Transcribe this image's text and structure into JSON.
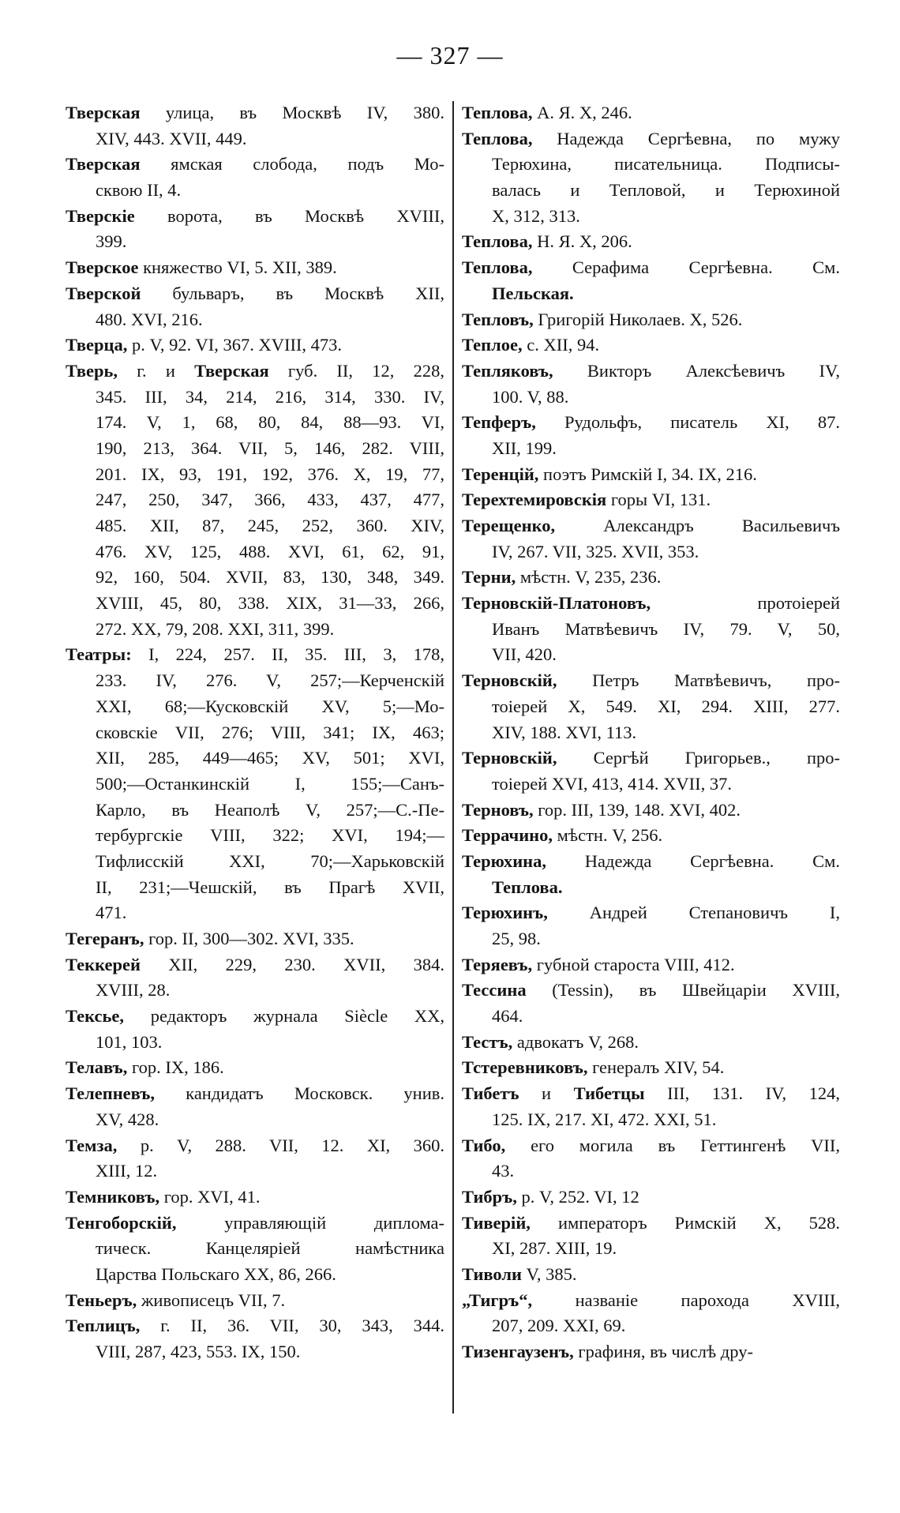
{
  "page_number": "— 327 —",
  "left": {
    "entries": [
      {
        "head": "Тверская",
        "lines": [
          " улица, въ Москвѣ IV, 380.",
          "XIV, 443. XVII, 449."
        ]
      },
      {
        "head": "Тверская",
        "lines": [
          " ямская слобода, подъ Мо-",
          "сквою II, 4."
        ]
      },
      {
        "head": "Тверскіе",
        "lines": [
          " ворота, въ Москвѣ XVIII,",
          "399."
        ]
      },
      {
        "head": "Тверское",
        "lines": [
          " княжество VI, 5. XII, 389."
        ]
      },
      {
        "head": "Тверской",
        "lines": [
          " бульваръ, въ Москвѣ XII,",
          "480. XVI, 216."
        ]
      },
      {
        "head": "Тверца,",
        "lines": [
          " р. V, 92. VI, 367. XVIII, 473."
        ]
      },
      {
        "head": "Тверь,",
        "lines": [
          [
            {
              "text": " г. и "
            },
            {
              "text": "Тверская",
              "bold": true
            },
            {
              "text": " губ. II, 12, 228,"
            }
          ],
          "345. III, 34, 214, 216, 314, 330. IV,",
          "174. V, 1, 68, 80, 84, 88—93. VI,",
          "190, 213, 364. VII, 5, 146, 282. VIII,",
          "201. IX, 93, 191, 192, 376. X, 19, 77,",
          "247, 250, 347, 366, 433, 437, 477,",
          "485. XII, 87, 245, 252, 360. XIV,",
          "476. XV, 125, 488. XVI, 61, 62, 91,",
          "92, 160, 504. XVII, 83, 130, 348, 349.",
          "XVIII, 45, 80, 338. XIX, 31—33, 266,",
          "272. XX, 79, 208. XXI, 311, 399."
        ]
      },
      {
        "head": "Театры:",
        "lines": [
          " I, 224, 257. II, 35. III, 3, 178,",
          "233. IV, 276. V, 257;—Керченскій",
          "XXI, 68;—Кусковскій XV, 5;—Мо-",
          "сковскіе VII, 276; VIII, 341; IX, 463;",
          "XII, 285, 449—465; XV, 501; XVI,",
          "500;—Останкинскій I, 155;—Санъ-",
          "Карло, въ Неаполѣ V, 257;—С.-Пе-",
          "тербургскіе VIII, 322; XVI, 194;—",
          "Тифлисскій XXI, 70;—Харьковскій",
          "II, 231;—Чешскій, въ Прагѣ XVII,",
          "471."
        ]
      },
      {
        "head": "Тегеранъ,",
        "lines": [
          " гор. II, 300—302. XVI, 335."
        ]
      },
      {
        "head": "Теккерей",
        "lines": [
          " XII, 229, 230. XVII, 384.",
          "XVIII, 28."
        ]
      },
      {
        "head": "Тексье,",
        "lines": [
          " редакторъ журнала Siècle XX,",
          "101, 103."
        ]
      },
      {
        "head": "Телавъ,",
        "lines": [
          " гор. IX, 186."
        ]
      },
      {
        "head": "Телепневъ,",
        "lines": [
          " кандидатъ Московск. унив.",
          "XV, 428."
        ]
      },
      {
        "head": "Темза,",
        "lines": [
          " р. V, 288. VII, 12. XI, 360.",
          "XIII, 12."
        ]
      },
      {
        "head": "Темниковъ,",
        "lines": [
          " гор. XVI, 41."
        ]
      },
      {
        "head": "Тенгоборскій,",
        "lines": [
          " управляющій диплома-",
          "тическ. Канцеляріей намѣстника",
          "Царства Польскаго XX, 86, 266."
        ]
      },
      {
        "head": "Теньеръ,",
        "lines": [
          " живописецъ VII, 7."
        ]
      },
      {
        "head": "Теплицъ,",
        "lines": [
          " г. II, 36. VII, 30, 343, 344.",
          "VIII, 287, 423, 553. IX, 150."
        ]
      }
    ]
  },
  "right": {
    "entries": [
      {
        "head": "Теплова,",
        "lines": [
          " А. Я. X, 246."
        ]
      },
      {
        "head": "Теплова,",
        "lines": [
          " Надежда Сергѣевна, по мужу",
          "Терюхина, писательница. Подписы-",
          "валась и Тепловой, и Терюхиной",
          "X, 312, 313."
        ]
      },
      {
        "head": "Теплова,",
        "lines": [
          " Н. Я. X, 206."
        ]
      },
      {
        "head": "Теплова,",
        "lines": [
          " Серафима Сергѣевна. См.",
          [
            {
              "text": "Пельская.",
              "bold": true
            }
          ]
        ]
      },
      {
        "head": "Тепловъ,",
        "lines": [
          " Григорій Николаев. X, 526."
        ]
      },
      {
        "head": "Теплое,",
        "lines": [
          " с. XII, 94."
        ]
      },
      {
        "head": "Тепляковъ,",
        "lines": [
          " Викторъ Алексѣевичъ IV,",
          "100. V, 88."
        ]
      },
      {
        "head": "Тепферъ,",
        "lines": [
          " Рудольфъ, писатель XI, 87.",
          "XII, 199."
        ]
      },
      {
        "head": "Теренцій,",
        "lines": [
          " поэтъ Римскій I, 34. IX, 216."
        ]
      },
      {
        "head": "Терехтемировскія",
        "lines": [
          " горы VI, 131."
        ]
      },
      {
        "head": "Терещенко,",
        "lines": [
          " Александръ Васильевичъ",
          "IV, 267. VII, 325. XVII, 353."
        ]
      },
      {
        "head": "Терни,",
        "lines": [
          " мѣстн. V, 235, 236."
        ]
      },
      {
        "head": "Терновскій-Платоновъ,",
        "lines": [
          " протоіерей",
          "Иванъ Матвѣевичъ IV, 79. V, 50,",
          "VII, 420."
        ]
      },
      {
        "head": "Терновскій,",
        "lines": [
          " Петръ Матвѣевичъ, про-",
          "тоіерей X, 549. XI, 294. XIII, 277.",
          "XIV, 188. XVI, 113."
        ]
      },
      {
        "head": "Терновскій,",
        "lines": [
          " Сергѣй Григорьев., про-",
          "тоіерей XVI, 413, 414. XVII, 37."
        ]
      },
      {
        "head": "Терновъ,",
        "lines": [
          " гор. III, 139, 148. XVI, 402."
        ]
      },
      {
        "head": "Террачино,",
        "lines": [
          " мѣстн. V, 256."
        ]
      },
      {
        "head": "Терюхина,",
        "lines": [
          " Надежда Сергѣевна. См.",
          [
            {
              "text": "Теплова.",
              "bold": true
            }
          ]
        ]
      },
      {
        "head": "Терюхинъ,",
        "lines": [
          " Андрей Степановичъ I,",
          "25, 98."
        ]
      },
      {
        "head": "Теряевъ,",
        "lines": [
          " губной староста VIII, 412."
        ]
      },
      {
        "head": "Тессина",
        "lines": [
          " (Tessin), въ Швейцаріи XVIII,",
          "464."
        ]
      },
      {
        "head": "Тестъ,",
        "lines": [
          " адвокатъ V, 268."
        ]
      },
      {
        "head": "Тстеревниковъ,",
        "lines": [
          " генералъ XIV, 54."
        ]
      },
      {
        "head": "Тибетъ",
        "lines": [
          [
            {
              "text": " и "
            },
            {
              "text": "Тибетцы",
              "bold": true
            },
            {
              "text": " III, 131. IV, 124,"
            }
          ],
          "125. IX, 217. XI, 472. XXI, 51."
        ]
      },
      {
        "head": "Тибо,",
        "lines": [
          " его могила въ Геттингенѣ VII,",
          "43."
        ]
      },
      {
        "head": "Тибръ,",
        "lines": [
          " р. V, 252. VI, 12"
        ]
      },
      {
        "head": "Тиверій,",
        "lines": [
          " императоръ Римскій X, 528.",
          "XI, 287. XIII, 19."
        ]
      },
      {
        "head": "Тиволи",
        "lines": [
          " V, 385."
        ]
      },
      {
        "head": "„Тигръ“,",
        "lines": [
          " названіе парохода XVIII,",
          "207, 209. XXI, 69."
        ]
      },
      {
        "head": "Тизенгаузенъ,",
        "lines": [
          " графиня, въ числѣ дру-"
        ]
      }
    ]
  }
}
